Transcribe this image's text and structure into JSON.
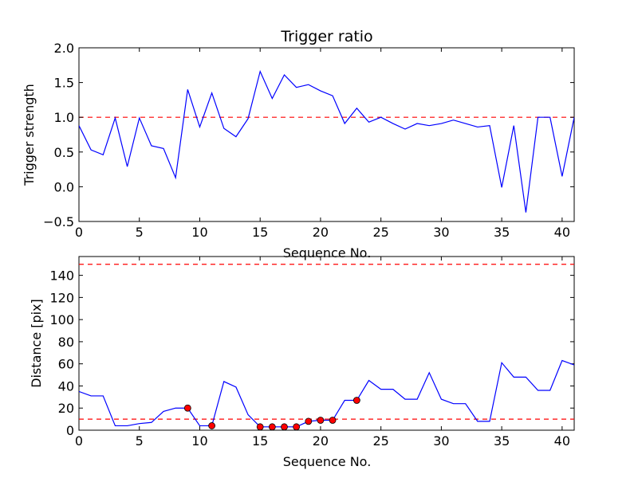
{
  "chart_data": [
    {
      "type": "line",
      "title": "Trigger ratio",
      "xlabel": "Sequence No.",
      "ylabel": "Trigger strength",
      "xlim": [
        0,
        41
      ],
      "ylim": [
        -0.5,
        2.0
      ],
      "xticks": [
        0,
        5,
        10,
        15,
        20,
        25,
        30,
        35,
        40
      ],
      "yticks": [
        -0.5,
        0.0,
        0.5,
        1.0,
        1.5,
        2.0
      ],
      "ytick_labels": [
        "−0.5",
        "0.0",
        "0.5",
        "1.0",
        "1.5",
        "2.0"
      ],
      "threshold_lines": [
        1.0
      ],
      "series": [
        {
          "name": "trigger strength",
          "color": "#0000ff",
          "x": [
            0,
            1,
            2,
            3,
            4,
            5,
            6,
            7,
            8,
            9,
            10,
            11,
            12,
            13,
            14,
            15,
            16,
            17,
            18,
            19,
            20,
            21,
            22,
            23,
            24,
            25,
            26,
            27,
            28,
            29,
            30,
            31,
            32,
            33,
            34,
            35,
            36,
            37,
            38,
            39,
            40,
            41
          ],
          "values": [
            0.88,
            0.53,
            0.46,
            0.99,
            0.29,
            0.99,
            0.59,
            0.55,
            0.13,
            1.4,
            0.86,
            1.35,
            0.84,
            0.72,
            0.98,
            1.66,
            1.27,
            1.61,
            1.43,
            1.47,
            1.38,
            1.31,
            0.91,
            1.13,
            0.93,
            1.0,
            0.91,
            0.83,
            0.91,
            0.88,
            0.91,
            0.96,
            0.91,
            0.86,
            0.88,
            -0.01,
            0.88,
            -0.37,
            1.0,
            1.0,
            0.15,
            1.0
          ]
        }
      ]
    },
    {
      "type": "line",
      "title": "",
      "xlabel": "Sequence No.",
      "ylabel": "Distance [pix]",
      "xlim": [
        0,
        41
      ],
      "ylim": [
        0,
        157
      ],
      "xticks": [
        0,
        5,
        10,
        15,
        20,
        25,
        30,
        35,
        40
      ],
      "yticks": [
        0,
        20,
        40,
        60,
        80,
        100,
        120,
        140
      ],
      "ytick_labels": [
        "0",
        "20",
        "40",
        "60",
        "80",
        "100",
        "120",
        "140"
      ],
      "threshold_lines": [
        10,
        150
      ],
      "series": [
        {
          "name": "distance",
          "color": "#0000ff",
          "x": [
            0,
            1,
            2,
            3,
            4,
            5,
            6,
            7,
            8,
            9,
            10,
            11,
            12,
            13,
            14,
            15,
            16,
            17,
            18,
            19,
            20,
            21,
            22,
            23,
            24,
            25,
            26,
            27,
            28,
            29,
            30,
            31,
            32,
            33,
            34,
            35,
            36,
            37,
            38,
            39,
            40,
            41
          ],
          "values": [
            35,
            31,
            31,
            4,
            4,
            6,
            7,
            17,
            20,
            20,
            4,
            4,
            44,
            39,
            14,
            3,
            3,
            3,
            3,
            8,
            9,
            9,
            27,
            27,
            45,
            37,
            37,
            28,
            28,
            52,
            28,
            24,
            24,
            8,
            8,
            61,
            48,
            48,
            36,
            36,
            63,
            59
          ]
        }
      ],
      "markers": {
        "color": "#ff0000",
        "x": [
          9,
          11,
          15,
          16,
          17,
          18,
          19,
          20,
          21,
          23
        ],
        "values": [
          20,
          4,
          3,
          3,
          3,
          3,
          8,
          9,
          9,
          27
        ]
      }
    }
  ]
}
